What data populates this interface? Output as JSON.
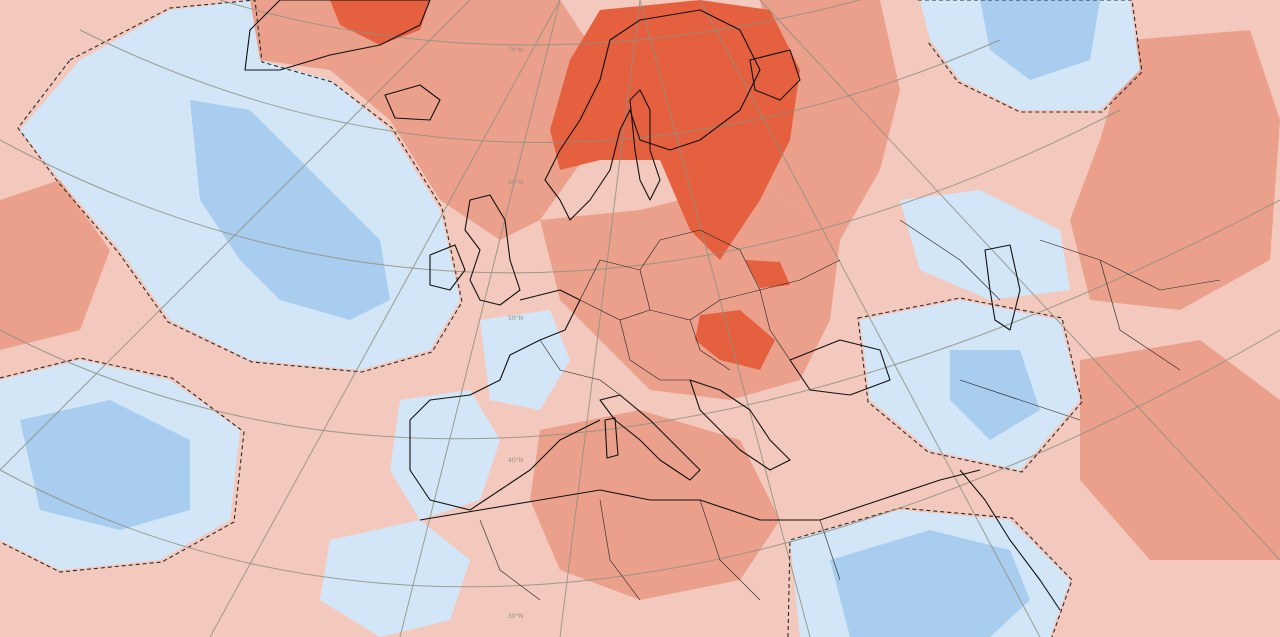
{
  "map": {
    "colors": {
      "warm_light": "#f4c9bd",
      "warm_medium": "#eba08c",
      "warm_strong": "#e4603f",
      "cool_light": "#d2e6f7",
      "cool_medium": "#a9cdef",
      "contour": "#2a2a2a",
      "graticule": "#8f8f7f"
    },
    "latitude_labels": [
      "70°N",
      "60°N",
      "50°N",
      "40°N",
      "30°N"
    ]
  }
}
